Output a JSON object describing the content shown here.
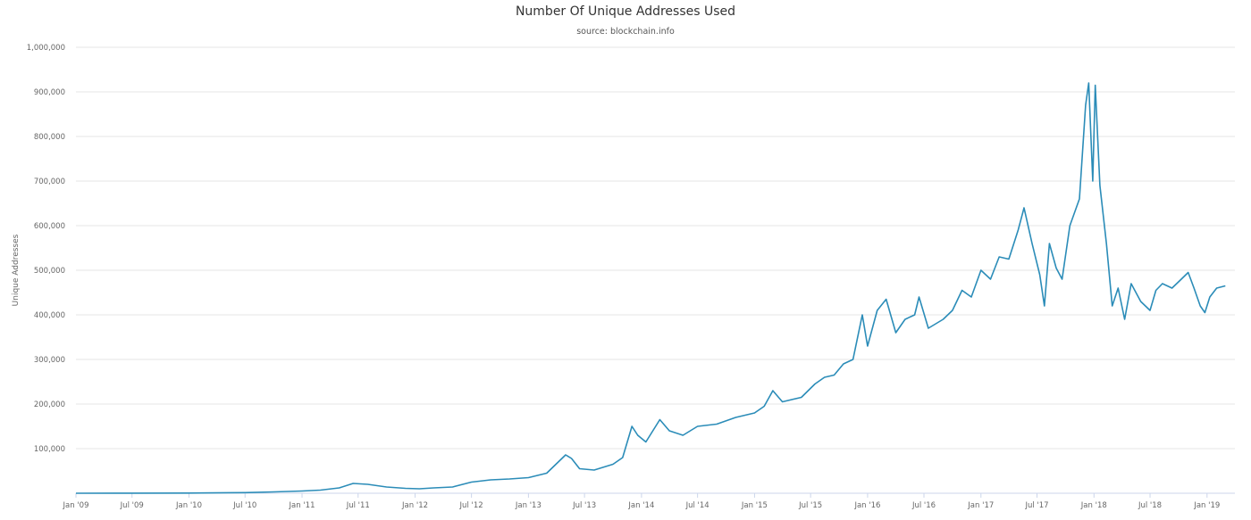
{
  "chart_data": {
    "type": "line",
    "title": "Number Of Unique Addresses Used",
    "subtitle": "source: blockchain.info",
    "xlabel": "",
    "ylabel": "Unique Addresses",
    "ylim": [
      0,
      1000000
    ],
    "yticks": [
      100000,
      200000,
      300000,
      400000,
      500000,
      600000,
      700000,
      800000,
      900000,
      1000000
    ],
    "ytick_labels": [
      "100,000",
      "200,000",
      "300,000",
      "400,000",
      "500,000",
      "600,000",
      "700,000",
      "800,000",
      "900,000",
      "1,000,000"
    ],
    "xlim": [
      "2009-01-01",
      "2019-04-01"
    ],
    "xticks": [
      "2009-01-01",
      "2009-07-01",
      "2010-01-01",
      "2010-07-01",
      "2011-01-01",
      "2011-07-01",
      "2012-01-01",
      "2012-07-01",
      "2013-01-01",
      "2013-07-01",
      "2014-01-01",
      "2014-07-01",
      "2015-01-01",
      "2015-07-01",
      "2016-01-01",
      "2016-07-01",
      "2017-01-01",
      "2017-07-01",
      "2018-01-01",
      "2018-07-01",
      "2019-01-01"
    ],
    "xtick_labels": [
      "Jan '09",
      "Jul '09",
      "Jan '10",
      "Jul '10",
      "Jan '11",
      "Jul '11",
      "Jan '12",
      "Jul '12",
      "Jan '13",
      "Jul '13",
      "Jan '14",
      "Jul '14",
      "Jan '15",
      "Jul '15",
      "Jan '16",
      "Jul '16",
      "Jan '17",
      "Jul '17",
      "Jan '18",
      "Jul '18",
      "Jan '19"
    ],
    "grid": true,
    "color": "#2b8cb8",
    "series": [
      {
        "name": "",
        "points": [
          [
            "2009-01-01",
            0
          ],
          [
            "2009-07-01",
            200
          ],
          [
            "2010-01-01",
            500
          ],
          [
            "2010-07-01",
            1500
          ],
          [
            "2010-10-01",
            3000
          ],
          [
            "2011-01-01",
            5000
          ],
          [
            "2011-03-01",
            7000
          ],
          [
            "2011-05-01",
            12000
          ],
          [
            "2011-06-15",
            22000
          ],
          [
            "2011-08-01",
            20000
          ],
          [
            "2011-10-01",
            14000
          ],
          [
            "2011-12-01",
            11000
          ],
          [
            "2012-01-15",
            10000
          ],
          [
            "2012-03-01",
            12000
          ],
          [
            "2012-05-01",
            14000
          ],
          [
            "2012-07-01",
            25000
          ],
          [
            "2012-09-01",
            30000
          ],
          [
            "2012-11-01",
            32000
          ],
          [
            "2013-01-01",
            35000
          ],
          [
            "2013-03-01",
            45000
          ],
          [
            "2013-05-01",
            86000
          ],
          [
            "2013-05-20",
            78000
          ],
          [
            "2013-06-15",
            55000
          ],
          [
            "2013-08-01",
            52000
          ],
          [
            "2013-10-01",
            65000
          ],
          [
            "2013-11-01",
            80000
          ],
          [
            "2013-12-01",
            150000
          ],
          [
            "2013-12-20",
            130000
          ],
          [
            "2014-01-15",
            115000
          ],
          [
            "2014-03-01",
            165000
          ],
          [
            "2014-04-01",
            140000
          ],
          [
            "2014-05-15",
            130000
          ],
          [
            "2014-07-01",
            150000
          ],
          [
            "2014-09-01",
            155000
          ],
          [
            "2014-11-01",
            170000
          ],
          [
            "2015-01-01",
            180000
          ],
          [
            "2015-02-01",
            195000
          ],
          [
            "2015-03-01",
            230000
          ],
          [
            "2015-04-01",
            205000
          ],
          [
            "2015-06-01",
            215000
          ],
          [
            "2015-07-15",
            245000
          ],
          [
            "2015-08-15",
            260000
          ],
          [
            "2015-09-15",
            265000
          ],
          [
            "2015-10-15",
            290000
          ],
          [
            "2015-11-15",
            300000
          ],
          [
            "2015-12-15",
            400000
          ],
          [
            "2016-01-01",
            330000
          ],
          [
            "2016-02-01",
            410000
          ],
          [
            "2016-03-01",
            435000
          ],
          [
            "2016-04-01",
            360000
          ],
          [
            "2016-05-01",
            390000
          ],
          [
            "2016-06-01",
            400000
          ],
          [
            "2016-06-15",
            440000
          ],
          [
            "2016-07-15",
            370000
          ],
          [
            "2016-09-01",
            390000
          ],
          [
            "2016-10-01",
            410000
          ],
          [
            "2016-11-01",
            455000
          ],
          [
            "2016-12-01",
            440000
          ],
          [
            "2017-01-01",
            500000
          ],
          [
            "2017-02-01",
            480000
          ],
          [
            "2017-03-01",
            530000
          ],
          [
            "2017-04-01",
            525000
          ],
          [
            "2017-05-01",
            590000
          ],
          [
            "2017-05-20",
            640000
          ],
          [
            "2017-06-15",
            560000
          ],
          [
            "2017-07-10",
            490000
          ],
          [
            "2017-07-25",
            420000
          ],
          [
            "2017-08-10",
            560000
          ],
          [
            "2017-09-01",
            505000
          ],
          [
            "2017-09-20",
            480000
          ],
          [
            "2017-10-15",
            600000
          ],
          [
            "2017-11-15",
            660000
          ],
          [
            "2017-12-05",
            870000
          ],
          [
            "2017-12-15",
            920000
          ],
          [
            "2017-12-28",
            700000
          ],
          [
            "2018-01-05",
            915000
          ],
          [
            "2018-01-20",
            690000
          ],
          [
            "2018-02-10",
            560000
          ],
          [
            "2018-03-01",
            420000
          ],
          [
            "2018-03-20",
            460000
          ],
          [
            "2018-04-10",
            390000
          ],
          [
            "2018-05-01",
            470000
          ],
          [
            "2018-06-01",
            430000
          ],
          [
            "2018-07-01",
            410000
          ],
          [
            "2018-07-20",
            455000
          ],
          [
            "2018-08-10",
            470000
          ],
          [
            "2018-09-10",
            460000
          ],
          [
            "2018-10-10",
            480000
          ],
          [
            "2018-11-01",
            495000
          ],
          [
            "2018-11-20",
            460000
          ],
          [
            "2018-12-10",
            420000
          ],
          [
            "2018-12-25",
            405000
          ],
          [
            "2019-01-10",
            440000
          ],
          [
            "2019-02-01",
            460000
          ],
          [
            "2019-03-01",
            465000
          ]
        ]
      }
    ]
  }
}
